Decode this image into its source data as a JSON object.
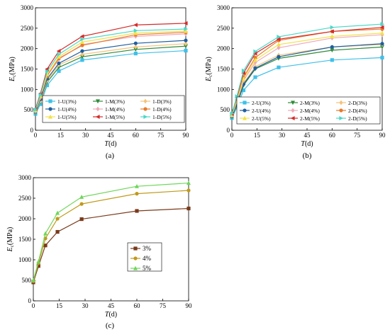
{
  "colors": {
    "U3": "#3ec0e8",
    "U4": "#1f5fa0",
    "U5": "#f2e24a",
    "M3": "#2f8a3a",
    "M4": "#f0a8b8",
    "M5": "#d62a2a",
    "D3": "#f5c27a",
    "D4": "#e87a2a",
    "D5": "#4ad8c8",
    "p3": "#7a3a1a",
    "p4": "#c09a1a",
    "p5": "#6fd65a"
  },
  "chart_data": [
    {
      "type": "line",
      "panel_label": "(a)",
      "xlabel": {
        "main": "T",
        "unit": "(d)"
      },
      "ylabel": {
        "main": "E",
        "sub": "c",
        "unit": "(MPa)"
      },
      "xlim": [
        0,
        90
      ],
      "ylim": [
        0,
        3000
      ],
      "xticks": [
        "0",
        "15",
        "30",
        "45",
        "60",
        "75",
        "90"
      ],
      "yticks": [
        "0",
        "500",
        "1000",
        "1500",
        "2000",
        "2500",
        "3000"
      ],
      "x": [
        0,
        3,
        7,
        14,
        28,
        60,
        90
      ],
      "legend_position": "bottom-right",
      "series": [
        {
          "name": "1-U(3%)",
          "color_key": "U3",
          "marker": "square",
          "values": [
            400,
            640,
            1100,
            1450,
            1720,
            1880,
            1950
          ]
        },
        {
          "name": "1-M(3%)",
          "color_key": "M3",
          "marker": "tri-down",
          "values": [
            420,
            700,
            1180,
            1540,
            1800,
            1980,
            2060
          ]
        },
        {
          "name": "1-D(3%)",
          "color_key": "D3",
          "marker": "diamond",
          "values": [
            440,
            720,
            1220,
            1600,
            1860,
            2040,
            2120
          ]
        },
        {
          "name": "1-U(4%)",
          "color_key": "U4",
          "marker": "circle",
          "values": [
            450,
            760,
            1260,
            1640,
            1940,
            2130,
            2200
          ]
        },
        {
          "name": "1-M(4%)",
          "color_key": "M4",
          "marker": "diamond",
          "values": [
            470,
            800,
            1330,
            1740,
            2100,
            2300,
            2360
          ]
        },
        {
          "name": "1-D(4%)",
          "color_key": "D4",
          "marker": "circle",
          "values": [
            480,
            820,
            1340,
            1760,
            2080,
            2340,
            2400
          ]
        },
        {
          "name": "1-U(5%)",
          "color_key": "U5",
          "marker": "triangle",
          "values": [
            480,
            830,
            1370,
            1800,
            2160,
            2380,
            2430
          ]
        },
        {
          "name": "1-M(5%)",
          "color_key": "M5",
          "marker": "tri-left",
          "values": [
            520,
            900,
            1500,
            1940,
            2300,
            2580,
            2620
          ]
        },
        {
          "name": "1-D(5%)",
          "color_key": "D5",
          "marker": "tri-right",
          "values": [
            500,
            860,
            1440,
            1860,
            2230,
            2440,
            2480
          ]
        }
      ]
    },
    {
      "type": "line",
      "panel_label": "(b)",
      "xlabel": {
        "main": "T",
        "unit": "(d)"
      },
      "ylabel": {
        "main": "E",
        "sub": "c",
        "unit": "(MPa)"
      },
      "xlim": [
        0,
        90
      ],
      "ylim": [
        0,
        3000
      ],
      "xticks": [
        "0",
        "15",
        "30",
        "45",
        "60",
        "75",
        "90"
      ],
      "yticks": [
        "0",
        "500",
        "1000",
        "1500",
        "2000",
        "2500",
        "3000"
      ],
      "x": [
        0,
        3,
        7,
        14,
        28,
        60,
        90
      ],
      "legend_position": "bottom-right",
      "series": [
        {
          "name": "2-U(3%)",
          "color_key": "U3",
          "marker": "square",
          "values": [
            300,
            560,
            980,
            1300,
            1540,
            1720,
            1780
          ]
        },
        {
          "name": "2-M(3%)",
          "color_key": "M3",
          "marker": "tri-down",
          "values": [
            320,
            620,
            1100,
            1500,
            1760,
            1960,
            2040
          ]
        },
        {
          "name": "2-D(3%)",
          "color_key": "D3",
          "marker": "diamond",
          "values": [
            340,
            660,
            1150,
            1560,
            1840,
            2040,
            2100
          ]
        },
        {
          "name": "2-U(4%)",
          "color_key": "U4",
          "marker": "circle",
          "values": [
            340,
            650,
            1130,
            1520,
            1800,
            2040,
            2120
          ]
        },
        {
          "name": "2-M(4%)",
          "color_key": "M4",
          "marker": "diamond",
          "values": [
            360,
            700,
            1220,
            1660,
            2020,
            2260,
            2340
          ]
        },
        {
          "name": "2-D(4%)",
          "color_key": "D4",
          "marker": "circle",
          "values": [
            380,
            740,
            1300,
            1780,
            2200,
            2420,
            2480
          ]
        },
        {
          "name": "2-U(5%)",
          "color_key": "U5",
          "marker": "triangle",
          "values": [
            370,
            720,
            1260,
            1720,
            2100,
            2300,
            2380
          ]
        },
        {
          "name": "2-M(5%)",
          "color_key": "M5",
          "marker": "tri-left",
          "values": [
            400,
            800,
            1400,
            1880,
            2230,
            2420,
            2520
          ]
        },
        {
          "name": "2-D(5%)",
          "color_key": "D5",
          "marker": "tri-right",
          "values": [
            410,
            830,
            1460,
            1930,
            2290,
            2520,
            2600
          ]
        }
      ]
    },
    {
      "type": "line",
      "panel_label": "(c)",
      "xlabel": {
        "main": "T",
        "unit": "(d)"
      },
      "ylabel": {
        "main": "E",
        "sub": "c",
        "unit": "(MPa)"
      },
      "xlim": [
        0,
        90
      ],
      "ylim": [
        0,
        3000
      ],
      "xticks": [
        "0",
        "15",
        "30",
        "45",
        "60",
        "75",
        "90"
      ],
      "yticks": [
        "0",
        "500",
        "1000",
        "1500",
        "2000",
        "2500",
        "3000"
      ],
      "x": [
        0,
        3,
        7,
        14,
        28,
        60,
        90
      ],
      "legend_position": "center-right",
      "series": [
        {
          "name": "3%",
          "color_key": "p3",
          "marker": "square",
          "values": [
            450,
            850,
            1350,
            1680,
            1990,
            2190,
            2250
          ]
        },
        {
          "name": "4%",
          "color_key": "p4",
          "marker": "circle",
          "values": [
            480,
            920,
            1520,
            2000,
            2360,
            2610,
            2690
          ]
        },
        {
          "name": "5%",
          "color_key": "p5",
          "marker": "triangle",
          "values": [
            500,
            960,
            1640,
            2140,
            2530,
            2790,
            2870
          ]
        }
      ]
    }
  ]
}
